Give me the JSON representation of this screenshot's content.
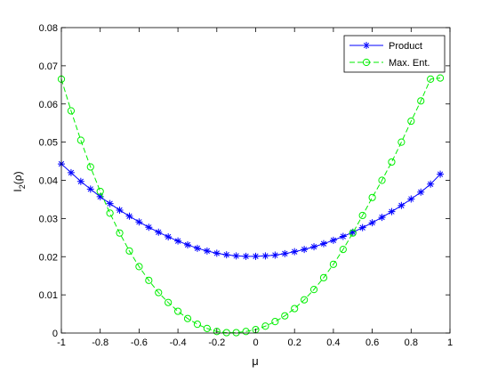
{
  "chart_data": {
    "type": "line",
    "title": "",
    "xlabel": "μ",
    "ylabel_main": "I",
    "ylabel_sub": "2",
    "ylabel_tail": "(ρ)",
    "xlim": [
      -1,
      1
    ],
    "ylim": [
      0,
      0.08
    ],
    "xticks": [
      -1,
      -0.8,
      -0.6,
      -0.4,
      -0.2,
      0,
      0.2,
      0.4,
      0.6,
      0.8,
      1
    ],
    "xtick_labels": [
      "-1",
      "-0.8",
      "-0.6",
      "-0.4",
      "-0.2",
      "0",
      "0.2",
      "0.4",
      "0.6",
      "0.8",
      "1"
    ],
    "yticks": [
      0,
      0.01,
      0.02,
      0.03,
      0.04,
      0.05,
      0.06,
      0.07,
      0.08
    ],
    "ytick_labels": [
      "0",
      "0.01",
      "0.02",
      "0.03",
      "0.04",
      "0.05",
      "0.06",
      "0.07",
      "0.08"
    ],
    "grid": false,
    "legend_position": "top-right",
    "x": [
      -1.0,
      -0.95,
      -0.9,
      -0.85,
      -0.8,
      -0.75,
      -0.7,
      -0.65,
      -0.6,
      -0.55,
      -0.5,
      -0.45,
      -0.4,
      -0.35,
      -0.3,
      -0.25,
      -0.2,
      -0.15,
      -0.1,
      -0.05,
      0.0,
      0.05,
      0.1,
      0.15,
      0.2,
      0.25,
      0.3,
      0.35,
      0.4,
      0.45,
      0.5,
      0.55,
      0.6,
      0.65,
      0.7,
      0.75,
      0.8,
      0.85,
      0.9,
      0.95
    ],
    "series": [
      {
        "name": "Product",
        "color": "#0000ff",
        "marker": "asterisk",
        "linestyle": "solid",
        "values": [
          0.0443,
          0.042,
          0.0397,
          0.0377,
          0.0357,
          0.0339,
          0.0322,
          0.0306,
          0.0291,
          0.0277,
          0.0264,
          0.0252,
          0.0241,
          0.0231,
          0.0222,
          0.0215,
          0.0209,
          0.0205,
          0.0202,
          0.0201,
          0.0201,
          0.0202,
          0.0204,
          0.0208,
          0.0213,
          0.0219,
          0.0226,
          0.0234,
          0.0243,
          0.0253,
          0.0264,
          0.0276,
          0.0289,
          0.0303,
          0.0318,
          0.0334,
          0.0351,
          0.0369,
          0.039,
          0.0416
        ]
      },
      {
        "name": "Max. Ent.",
        "color": "#00ee00",
        "marker": "circle",
        "linestyle": "dashed",
        "values": [
          0.0665,
          0.0582,
          0.0505,
          0.0435,
          0.0371,
          0.0314,
          0.0262,
          0.0215,
          0.0174,
          0.0138,
          0.0106,
          0.008,
          0.0057,
          0.0038,
          0.0023,
          0.0012,
          0.0004,
          0.0001,
          0.0001,
          0.0004,
          0.0009,
          0.0018,
          0.003,
          0.0045,
          0.0064,
          0.0087,
          0.0114,
          0.0145,
          0.018,
          0.0219,
          0.0262,
          0.0308,
          0.0355,
          0.04,
          0.0448,
          0.05,
          0.0555,
          0.0608,
          0.0665,
          0.0668
        ]
      }
    ]
  }
}
